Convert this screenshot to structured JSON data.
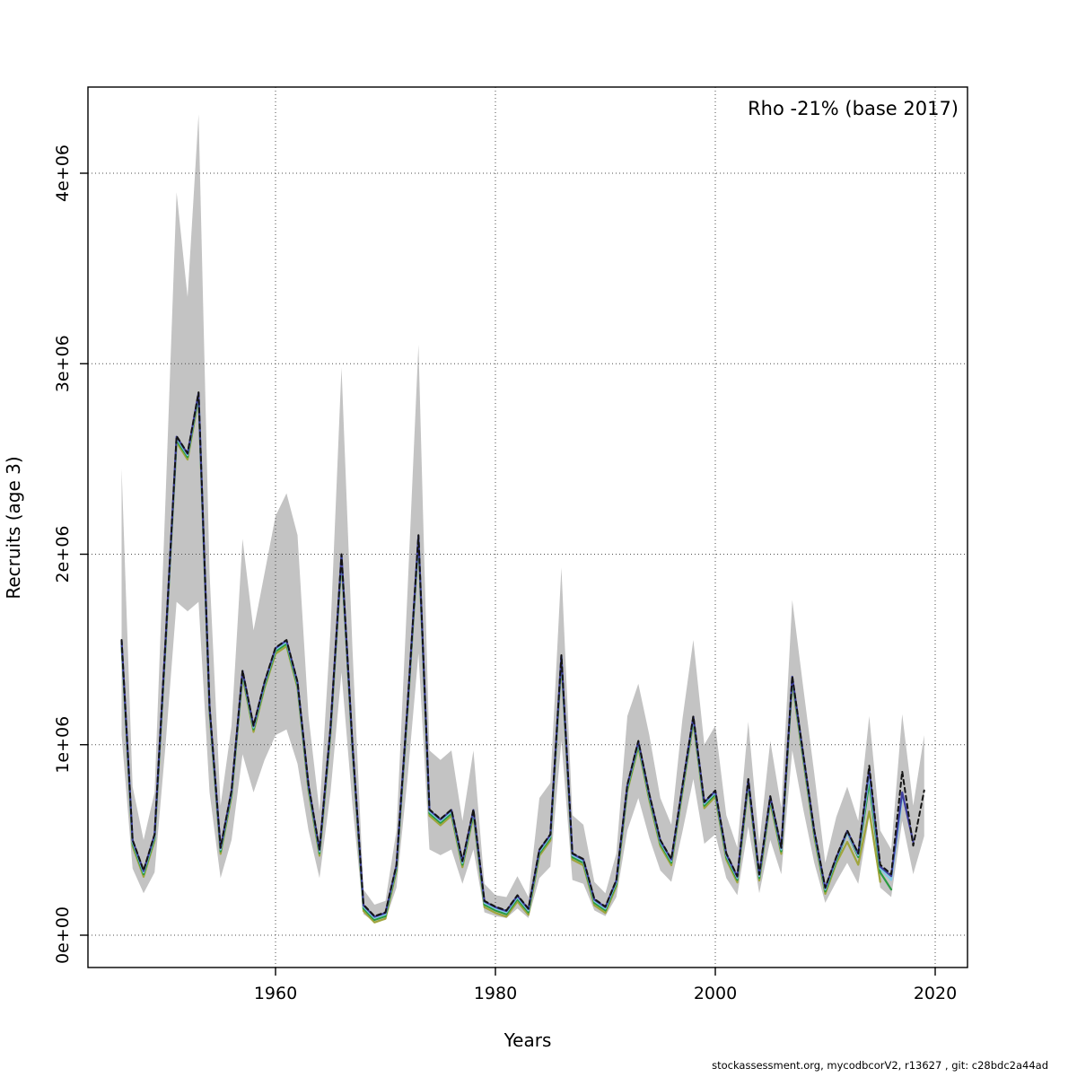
{
  "annotation": "Rho -21% (base 2017)",
  "footer": "stockassessment.org, mycodbcorV2, r13627 , git: c28bdc2a44ad",
  "axes": {
    "x_label": "Years",
    "y_label": "Recruits (age 3)",
    "x_ticks": [
      {
        "value": 1960,
        "label": "1960"
      },
      {
        "value": 1980,
        "label": "1980"
      },
      {
        "value": 2000,
        "label": "2000"
      },
      {
        "value": 2020,
        "label": "2020"
      }
    ],
    "y_ticks": [
      {
        "value": 0,
        "label": "0e+00"
      },
      {
        "value": 1,
        "label": "1e+06"
      },
      {
        "value": 2,
        "label": "2e+06"
      },
      {
        "value": 3,
        "label": "3e+06"
      },
      {
        "value": 4,
        "label": "4e+06"
      }
    ]
  },
  "colors": {
    "band": "#c3c3c3",
    "grid": "#4d4d4d",
    "box": "#000000",
    "base_run": "#141414",
    "peel_2018": "#3f3fa0",
    "peel_2017": "#82cbe8",
    "peel_2016": "#2a9b40",
    "peel_2015": "#a0a53c"
  },
  "chart_data": {
    "type": "line",
    "title": "Rho -21% (base 2017)",
    "xlabel": "Years",
    "ylabel": "Recruits (age 3)",
    "values_unit": "recruits, millions (1e6)",
    "xlim": [
      1943,
      2023
    ],
    "ylim": [
      0,
      4.45
    ],
    "grid": "dotted",
    "legend": "none",
    "years": [
      1946,
      1947,
      1948,
      1949,
      1950,
      1951,
      1952,
      1953,
      1954,
      1955,
      1956,
      1957,
      1958,
      1959,
      1960,
      1961,
      1962,
      1963,
      1964,
      1965,
      1966,
      1967,
      1968,
      1969,
      1970,
      1971,
      1972,
      1973,
      1974,
      1975,
      1976,
      1977,
      1978,
      1979,
      1980,
      1981,
      1982,
      1983,
      1984,
      1985,
      1986,
      1987,
      1988,
      1989,
      1990,
      1991,
      1992,
      1993,
      1994,
      1995,
      1996,
      1997,
      1998,
      1999,
      2000,
      2001,
      2002,
      2003,
      2004,
      2005,
      2006,
      2007,
      2008,
      2009,
      2010,
      2011,
      2012,
      2013,
      2014,
      2015,
      2016,
      2017,
      2018,
      2019
    ],
    "base_run": {
      "name": "base-run-dashed-black",
      "end_year": 2019,
      "values": [
        1.55,
        0.5,
        0.34,
        0.53,
        1.55,
        2.62,
        2.53,
        2.85,
        1.2,
        0.46,
        0.76,
        1.39,
        1.1,
        1.33,
        1.51,
        1.55,
        1.33,
        0.79,
        0.45,
        1.09,
        2.0,
        1.0,
        0.16,
        0.1,
        0.12,
        0.37,
        1.2,
        2.1,
        0.66,
        0.61,
        0.66,
        0.39,
        0.66,
        0.18,
        0.15,
        0.13,
        0.21,
        0.14,
        0.45,
        0.53,
        1.47,
        0.43,
        0.4,
        0.19,
        0.15,
        0.29,
        0.79,
        1.02,
        0.74,
        0.5,
        0.4,
        0.78,
        1.15,
        0.7,
        0.76,
        0.43,
        0.31,
        0.82,
        0.32,
        0.73,
        0.46,
        1.36,
        0.95,
        0.55,
        0.25,
        0.41,
        0.55,
        0.43,
        0.89,
        0.37,
        0.32,
        0.86,
        0.47,
        0.76
      ]
    },
    "confidence_band": {
      "low": [
        1.05,
        0.35,
        0.22,
        0.33,
        1.0,
        1.75,
        1.7,
        1.75,
        0.75,
        0.3,
        0.5,
        0.95,
        0.75,
        0.92,
        1.05,
        1.08,
        0.9,
        0.55,
        0.3,
        0.75,
        1.38,
        0.68,
        0.11,
        0.07,
        0.08,
        0.25,
        0.82,
        1.48,
        0.45,
        0.42,
        0.45,
        0.27,
        0.45,
        0.12,
        0.1,
        0.09,
        0.14,
        0.09,
        0.3,
        0.36,
        1.02,
        0.29,
        0.27,
        0.13,
        0.1,
        0.2,
        0.55,
        0.72,
        0.51,
        0.34,
        0.28,
        0.54,
        0.82,
        0.48,
        0.53,
        0.3,
        0.21,
        0.57,
        0.22,
        0.5,
        0.32,
        0.97,
        0.66,
        0.38,
        0.17,
        0.28,
        0.38,
        0.27,
        0.62,
        0.25,
        0.2,
        0.6,
        0.32,
        0.52
      ],
      "high": [
        2.45,
        0.78,
        0.5,
        0.75,
        2.3,
        3.9,
        3.35,
        4.31,
        1.9,
        0.68,
        1.1,
        2.08,
        1.6,
        1.9,
        2.2,
        2.32,
        2.1,
        1.15,
        0.65,
        1.6,
        2.98,
        1.5,
        0.24,
        0.16,
        0.18,
        0.55,
        1.8,
        3.1,
        0.97,
        0.92,
        0.97,
        0.6,
        0.97,
        0.27,
        0.21,
        0.2,
        0.31,
        0.2,
        0.72,
        0.8,
        1.93,
        0.63,
        0.58,
        0.28,
        0.22,
        0.43,
        1.15,
        1.32,
        1.05,
        0.72,
        0.58,
        1.13,
        1.55,
        1.0,
        1.1,
        0.63,
        0.46,
        1.12,
        0.48,
        1.02,
        0.67,
        1.76,
        1.3,
        0.85,
        0.38,
        0.62,
        0.78,
        0.6,
        1.15,
        0.55,
        0.45,
        1.16,
        0.68,
        1.05
      ]
    },
    "retro_peels": [
      {
        "name": "retro-peel-2015",
        "color_key": "peel_2015",
        "end_year": 2015,
        "offset": -0.033,
        "tail_values": {
          "2012": 0.49,
          "2013": 0.37,
          "2014": 0.65,
          "2015": 0.28
        }
      },
      {
        "name": "retro-peel-2016",
        "color_key": "peel_2016",
        "end_year": 2016,
        "offset": -0.02,
        "tail_values": {
          "2012": 0.54,
          "2013": 0.41,
          "2014": 0.8,
          "2015": 0.33,
          "2016": 0.24
        }
      },
      {
        "name": "retro-peel-2017",
        "color_key": "peel_2017",
        "end_year": 2017,
        "offset": -0.01,
        "tail_values": {
          "2013": 0.42,
          "2014": 0.84,
          "2015": 0.35,
          "2016": 0.29,
          "2017": 0.72
        }
      },
      {
        "name": "retro-peel-2018",
        "color_key": "peel_2018",
        "end_year": 2018,
        "offset": -0.003,
        "tail_values": {
          "2014": 0.87,
          "2015": 0.36,
          "2016": 0.31,
          "2017": 0.75,
          "2018": 0.49
        }
      }
    ]
  }
}
